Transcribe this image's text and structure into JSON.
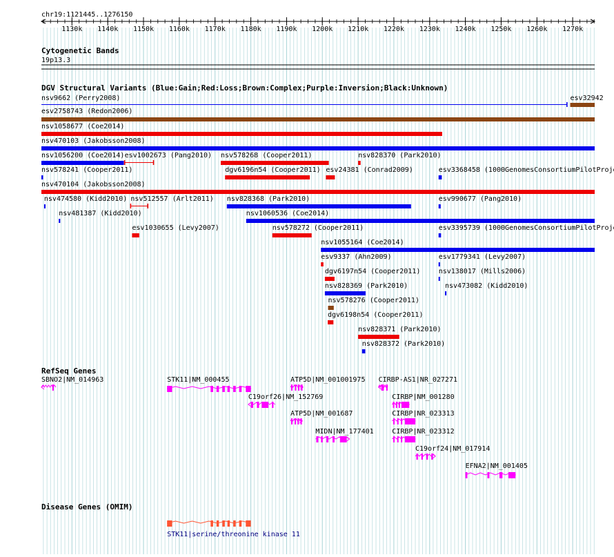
{
  "region_label": "chr19:1121445..1276150",
  "ruler": {
    "start": 1121445,
    "end": 1276150,
    "ticks": [
      {
        "pos": 1130000,
        "label": "1130k"
      },
      {
        "pos": 1140000,
        "label": "1140k"
      },
      {
        "pos": 1150000,
        "label": "1150k"
      },
      {
        "pos": 1160000,
        "label": "1160k"
      },
      {
        "pos": 1170000,
        "label": "1170k"
      },
      {
        "pos": 1180000,
        "label": "1180k"
      },
      {
        "pos": 1190000,
        "label": "1190k"
      },
      {
        "pos": 1200000,
        "label": "1200k"
      },
      {
        "pos": 1210000,
        "label": "1210k"
      },
      {
        "pos": 1220000,
        "label": "1220k"
      },
      {
        "pos": 1230000,
        "label": "1230k"
      },
      {
        "pos": 1240000,
        "label": "1240k"
      },
      {
        "pos": 1250000,
        "label": "1250k"
      },
      {
        "pos": 1260000,
        "label": "1260k"
      },
      {
        "pos": 1270000,
        "label": "1270k"
      }
    ]
  },
  "colors": {
    "gain": "#0000ee",
    "loss": "#ee0000",
    "complex": "#8b4513",
    "gene": "#ff00ff",
    "omim": "#ff5533",
    "grid": "#a6d3d6",
    "link": "#000080"
  },
  "tracks": {
    "cytoband": {
      "title": "Cytogenetic Bands",
      "bands": [
        {
          "label": "19p13.3"
        }
      ]
    },
    "dgv": {
      "title": "DGV Structural Variants (Blue:Gain;Red:Loss;Brown:Complex;Purple:Inversion;Black:Unknown)",
      "variants": [
        {
          "label": "nsv9662 (Perry2008)",
          "type": "gain-thin",
          "start": 1121445,
          "end": 1268400
        },
        {
          "label": "esv32942",
          "type": "complex",
          "start": 1269300,
          "end": 1276150
        },
        {
          "label": "esv2758743 (Redon2006)",
          "type": "complex",
          "start": 1121445,
          "end": 1276150
        },
        {
          "label": "nsv1058677 (Coe2014)",
          "type": "loss",
          "start": 1121445,
          "end": 1233500
        },
        {
          "label": "nsv470103 (Jakobsson2008)",
          "type": "gain",
          "start": 1121445,
          "end": 1276150
        },
        {
          "label": "nsv1056200 (Coe2014)",
          "type": "gain",
          "start": 1121445,
          "end": 1144500
        },
        {
          "label": "esv1002673 (Pang2010)",
          "type": "loss-thin",
          "start": 1144700,
          "end": 1152800
        },
        {
          "label": "nsv578268 (Cooper2011)",
          "type": "loss",
          "start": 1171600,
          "end": 1201800
        },
        {
          "label": "nsv828370 (Park2010)",
          "type": "loss",
          "start": 1210000,
          "end": 1210700
        },
        {
          "label": "nsv578241 (Cooper2011)",
          "type": "gain",
          "start": 1121445,
          "end": 1121900
        },
        {
          "label": "dgv6196n54 (Cooper2011)",
          "type": "loss",
          "start": 1172800,
          "end": 1196500
        },
        {
          "label": "esv24381 (Conrad2009)",
          "type": "loss",
          "start": 1201000,
          "end": 1203500
        },
        {
          "label": "esv3368458 (1000GenomesConsortiumPilotProject)",
          "type": "gain",
          "start": 1232500,
          "end": 1233400
        },
        {
          "label": "nsv470104 (Jakobsson2008)",
          "type": "loss",
          "start": 1121445,
          "end": 1276150
        },
        {
          "label": "nsv474580 (Kidd2010)",
          "type": "gain",
          "start": 1122200,
          "end": 1122600
        },
        {
          "label": "nsv512557 (Arlt2011)",
          "type": "loss-thin",
          "start": 1146400,
          "end": 1151200
        },
        {
          "label": "nsv828368 (Park2010)",
          "type": "gain",
          "start": 1173300,
          "end": 1224800
        },
        {
          "label": "esv990677 (Pang2010)",
          "type": "gain",
          "start": 1232500,
          "end": 1233100
        },
        {
          "label": "nsv481387 (Kidd2010)",
          "type": "gain",
          "start": 1126300,
          "end": 1126700
        },
        {
          "label": "nsv1060536 (Coe2014)",
          "type": "gain",
          "start": 1178700,
          "end": 1276150
        },
        {
          "label": "esv1030655 (Levy2007)",
          "type": "loss",
          "start": 1146800,
          "end": 1148800
        },
        {
          "label": "nsv578272 (Cooper2011)",
          "type": "loss",
          "start": 1186000,
          "end": 1197000
        },
        {
          "label": "esv3395739 (1000GenomesConsortiumPilotProject)",
          "type": "gain",
          "start": 1232500,
          "end": 1233200
        },
        {
          "label": "nsv1055164 (Coe2014)",
          "type": "gain",
          "start": 1199600,
          "end": 1276150
        },
        {
          "label": "esv9337 (Ahn2009)",
          "type": "loss",
          "start": 1199600,
          "end": 1200300
        },
        {
          "label": "esv1779341 (Levy2007)",
          "type": "gain",
          "start": 1232500,
          "end": 1232900
        },
        {
          "label": "dgv6197n54 (Cooper2011)",
          "type": "loss",
          "start": 1200700,
          "end": 1203400
        },
        {
          "label": "nsv138017 (Mills2006)",
          "type": "gain",
          "start": 1232500,
          "end": 1232800
        },
        {
          "label": "nsv828369 (Park2010)",
          "type": "gain",
          "start": 1200700,
          "end": 1212100
        },
        {
          "label": "nsv473082 (Kidd2010)",
          "type": "gain",
          "start": 1234300,
          "end": 1234700
        },
        {
          "label": "nsv578276 (Cooper2011)",
          "type": "complex",
          "start": 1201600,
          "end": 1203200
        },
        {
          "label": "dgv6198n54 (Cooper2011)",
          "type": "loss",
          "start": 1201500,
          "end": 1203100
        },
        {
          "label": "nsv828371 (Park2010)",
          "type": "loss",
          "start": 1210000,
          "end": 1221500
        },
        {
          "label": "nsv828372 (Park2010)",
          "type": "gain",
          "start": 1211100,
          "end": 1212000
        }
      ]
    },
    "refseq": {
      "title": "RefSeq Genes",
      "genes": [
        {
          "label": "SBNO2|NM_014963",
          "start": 1121445,
          "end": 1125500,
          "strand": "-"
        },
        {
          "label": "STK11|NM_000455",
          "start": 1156600,
          "end": 1180000,
          "strand": "+"
        },
        {
          "label": "C19orf26|NM_152769",
          "start": 1179300,
          "end": 1186800,
          "strand": "-"
        },
        {
          "label": "ATP5D|NM_001001975",
          "start": 1191100,
          "end": 1194600,
          "strand": "+"
        },
        {
          "label": "ATP5D|NM_001687",
          "start": 1191100,
          "end": 1194400,
          "strand": "+"
        },
        {
          "label": "MIDN|NM_177401",
          "start": 1198100,
          "end": 1207600,
          "strand": "+"
        },
        {
          "label": "CIRBP-AS1|NR_027271",
          "start": 1215700,
          "end": 1218300,
          "strand": "-"
        },
        {
          "label": "CIRBP|NM_001280",
          "start": 1219500,
          "end": 1224300,
          "strand": "+"
        },
        {
          "label": "CIRBP|NR_023313",
          "start": 1219500,
          "end": 1226000,
          "strand": "+"
        },
        {
          "label": "CIRBP|NR_023312",
          "start": 1219500,
          "end": 1226000,
          "strand": "+"
        },
        {
          "label": "C19orf24|NM_017914",
          "start": 1226000,
          "end": 1231600,
          "strand": "+"
        },
        {
          "label": "EFNA2|NM_001405",
          "start": 1240000,
          "end": 1254000,
          "strand": "+"
        }
      ]
    },
    "omim": {
      "title": "Disease Genes (OMIM)",
      "genes": [
        {
          "label": "STK11|serine/threonine kinase 11",
          "start": 1156600,
          "end": 1180000
        }
      ]
    }
  }
}
